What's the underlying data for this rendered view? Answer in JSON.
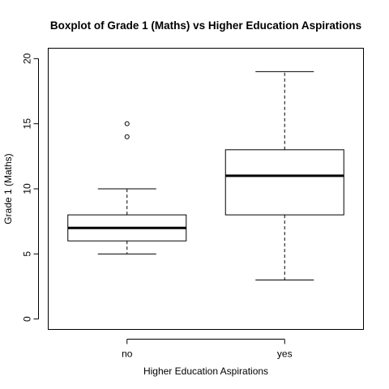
{
  "chart_data": {
    "type": "boxplot",
    "title": "Boxplot of Grade 1 (Maths)  vs  Higher Education Aspirations",
    "xlabel": "Higher Education Aspirations",
    "ylabel": "Grade 1 (Maths)",
    "ylim": [
      -0.8,
      20.8
    ],
    "yticks": [
      0,
      5,
      10,
      15,
      20
    ],
    "categories": [
      "no",
      "yes"
    ],
    "boxes": [
      {
        "category": "no",
        "whisker_low": 5,
        "q1": 6,
        "median": 7,
        "q3": 8,
        "whisker_high": 10,
        "outliers": [
          14,
          15
        ]
      },
      {
        "category": "yes",
        "whisker_low": 3,
        "q1": 8,
        "median": 11,
        "q3": 13,
        "whisker_high": 19,
        "outliers": []
      }
    ],
    "grid": false,
    "legend": "none"
  }
}
